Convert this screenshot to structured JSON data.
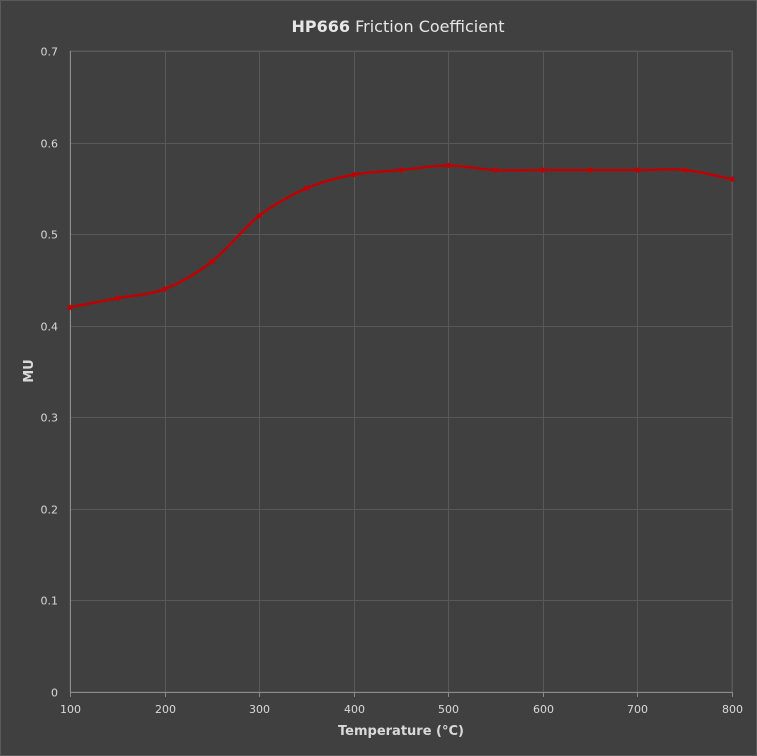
{
  "chart_data": {
    "type": "line",
    "title_bold": "HP666",
    "title_rest": " Friction Coefficient",
    "xlabel": "Temperature (°C)",
    "ylabel": "MU",
    "xlim": [
      100,
      800
    ],
    "ylim": [
      0,
      0.7
    ],
    "xticks": [
      "100",
      "200",
      "300",
      "400",
      "500",
      "600",
      "700",
      "800"
    ],
    "yticks": [
      "0",
      "0.1",
      "0.2",
      "0.3",
      "0.4",
      "0.5",
      "0.6",
      "0.7"
    ],
    "grid": true,
    "smooth": true,
    "series": [
      {
        "color": "#c00000",
        "points": [
          {
            "x": 100,
            "y": 0.42
          },
          {
            "x": 150,
            "y": 0.43
          },
          {
            "x": 200,
            "y": 0.44
          },
          {
            "x": 250,
            "y": 0.47
          },
          {
            "x": 300,
            "y": 0.52
          },
          {
            "x": 350,
            "y": 0.55
          },
          {
            "x": 400,
            "y": 0.565
          },
          {
            "x": 450,
            "y": 0.57
          },
          {
            "x": 500,
            "y": 0.575
          },
          {
            "x": 550,
            "y": 0.57
          },
          {
            "x": 600,
            "y": 0.57
          },
          {
            "x": 650,
            "y": 0.57
          },
          {
            "x": 700,
            "y": 0.57
          },
          {
            "x": 750,
            "y": 0.57
          },
          {
            "x": 800,
            "y": 0.56
          }
        ]
      }
    ],
    "colors": {
      "background": "#404040",
      "grid": "#595959",
      "axis": "#8c8c8c",
      "text": "#d9d9d9"
    }
  }
}
